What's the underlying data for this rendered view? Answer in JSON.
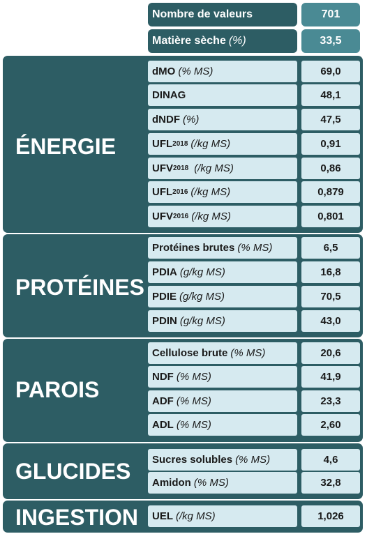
{
  "header": {
    "count_label": "Nombre de valeurs",
    "count_value": "701",
    "dm_label": "Matière sèche",
    "dm_unit": "(%)",
    "dm_value": "33,5"
  },
  "sections": {
    "energie": {
      "title": "ÉNERGIE",
      "rows": [
        {
          "name": "dMO",
          "sub": "",
          "unit": "(% MS)",
          "value": "69,0"
        },
        {
          "name": "DINAG",
          "sub": "",
          "unit": "",
          "value": "48,1"
        },
        {
          "name": "dNDF",
          "sub": "",
          "unit": "(%)",
          "value": "47,5"
        },
        {
          "name": "UFL",
          "sub": "2018",
          "unit": "(/kg MS)",
          "value": "0,91"
        },
        {
          "name": "UFV",
          "sub": "2018",
          "unit": "(/kg MS)",
          "value": "0,86"
        },
        {
          "name": "UFL",
          "sub": "2016",
          "unit": "(/kg MS)",
          "value": "0,879"
        },
        {
          "name": "UFV",
          "sub": "2016",
          "unit": "(/kg MS)",
          "value": "0,801"
        }
      ]
    },
    "proteines": {
      "title": "PROTÉINES",
      "rows": [
        {
          "name": "Protéines brutes",
          "sub": "",
          "unit": "(% MS)",
          "value": "6,5"
        },
        {
          "name": "PDIA",
          "sub": "",
          "unit": "(g/kg MS)",
          "value": "16,8"
        },
        {
          "name": "PDIE",
          "sub": "",
          "unit": "(g/kg MS)",
          "value": "70,5"
        },
        {
          "name": "PDIN",
          "sub": "",
          "unit": "(g/kg MS)",
          "value": "43,0"
        }
      ]
    },
    "parois": {
      "title": "PAROIS",
      "rows": [
        {
          "name": "Cellulose brute",
          "sub": "",
          "unit": "(% MS)",
          "value": "20,6"
        },
        {
          "name": "NDF",
          "sub": "",
          "unit": "(% MS)",
          "value": "41,9"
        },
        {
          "name": "ADF",
          "sub": "",
          "unit": "(% MS)",
          "value": "23,3"
        },
        {
          "name": "ADL",
          "sub": "",
          "unit": "(% MS)",
          "value": "2,60"
        }
      ]
    },
    "glucides": {
      "title": "GLUCIDES",
      "rows": [
        {
          "name": "Sucres solubles",
          "sub": "",
          "unit": "(% MS)",
          "value": "4,6"
        },
        {
          "name": "Amidon",
          "sub": "",
          "unit": "(% MS)",
          "value": "32,8"
        }
      ]
    },
    "ingestion": {
      "title": "INGESTION",
      "rows": [
        {
          "name": "UEL",
          "sub": "",
          "unit": "(/kg MS)",
          "value": "1,026"
        }
      ]
    }
  }
}
